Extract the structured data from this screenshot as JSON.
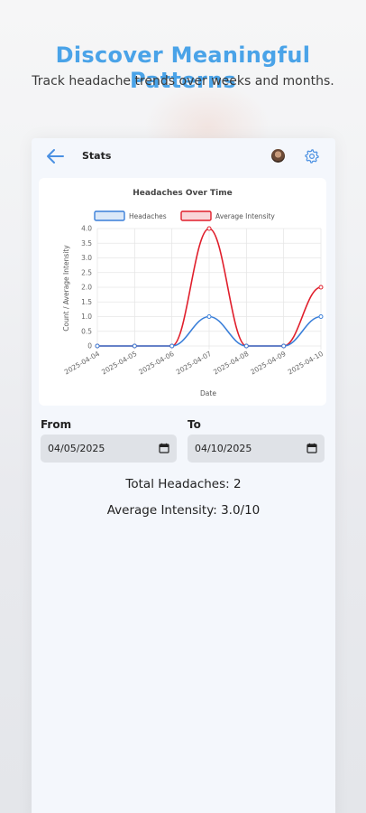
{
  "promo": {
    "title": "Discover Meaningful Patterns",
    "subtitle": "Track headache trends over weeks and months."
  },
  "appbar": {
    "title": "Stats",
    "back_icon": "arrow-left-icon",
    "settings_icon": "gear-icon"
  },
  "colors": {
    "accent": "#4aa3e8",
    "headaches": "#3a7fd9",
    "intensity": "#e01e2b"
  },
  "chart_data": {
    "type": "line",
    "title": "Headaches Over Time",
    "xlabel": "Date",
    "ylabel": "Count / Average Intensity",
    "x": [
      "2025-04-04",
      "2025-04-05",
      "2025-04-06",
      "2025-04-07",
      "2025-04-08",
      "2025-04-09",
      "2025-04-10"
    ],
    "series": [
      {
        "name": "Headaches",
        "values": [
          0,
          0,
          0,
          1,
          0,
          0,
          1
        ]
      },
      {
        "name": "Average Intensity",
        "values": [
          0,
          0,
          0,
          4,
          0,
          0,
          2
        ]
      }
    ],
    "ylim": [
      0,
      4
    ],
    "yticks": [
      "0",
      "0.5",
      "1.0",
      "1.5",
      "2.0",
      "2.5",
      "3.0",
      "3.5",
      "4.0"
    ],
    "grid": true,
    "legend": "top"
  },
  "filters": {
    "from_label": "From",
    "from_value": "04/05/2025",
    "to_label": "To",
    "to_value": "04/10/2025"
  },
  "summary": {
    "total": "Total Headaches: 2",
    "average": "Average Intensity: 3.0/10"
  }
}
